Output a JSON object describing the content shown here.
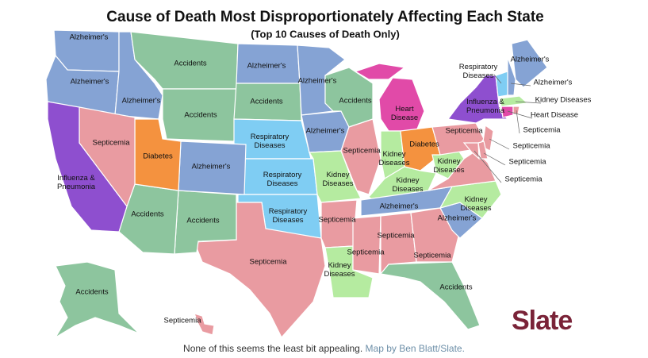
{
  "title": "Cause of Death Most Disproportionately Affecting Each State",
  "subtitle": "(Top 10 Causes of Death Only)",
  "regions": [
    {
      "label": [
        "Alzheimer's"
      ],
      "color": "#85a3d4"
    },
    {
      "label": [
        "Alzheimer's"
      ],
      "color": "#85a3d4"
    },
    {
      "label": [
        "Alzheimer's"
      ],
      "color": "#85a3d4"
    },
    {
      "label": [
        "Accidents"
      ],
      "color": "#8dc59e"
    },
    {
      "label": [
        "Accidents"
      ],
      "color": "#8dc59e"
    },
    {
      "label": [
        "Alzheimer's"
      ],
      "color": "#85a3d4"
    },
    {
      "label": [
        "Accidents"
      ],
      "color": "#8dc59e"
    },
    {
      "label": [
        "Respiratory",
        "Diseases"
      ],
      "color": "#7fcdf3"
    },
    {
      "label": [
        "Respiratory",
        "Diseases"
      ],
      "color": "#7fcdf3"
    },
    {
      "label": [
        "Respiratory",
        "Diseases"
      ],
      "color": "#7fcdf3"
    },
    {
      "label": [
        "Septicemia"
      ],
      "color": "#e99ba1"
    },
    {
      "label": [
        "Accidents"
      ],
      "color": "#8dc59e"
    },
    {
      "label": [
        "Accidents"
      ],
      "color": "#8dc59e"
    },
    {
      "label": [
        "Alzheimer's"
      ],
      "color": "#85a3d4"
    },
    {
      "label": [
        "Diabetes"
      ],
      "color": "#f4923f"
    },
    {
      "label": [
        "Septicemia"
      ],
      "color": "#e99ba1"
    },
    {
      "label": [
        "Influenza &",
        "Pneumonia"
      ],
      "color": "#8e4fcf"
    },
    {
      "label": [
        "Alzheimer's"
      ],
      "color": "#85a3d4"
    },
    {
      "label": [
        "Alzheimer's"
      ],
      "color": "#85a3d4"
    },
    {
      "label": [
        "Kidney",
        "Diseases"
      ],
      "color": "#b5eba0"
    },
    {
      "label": [
        "Septicemia"
      ],
      "color": "#e99ba1"
    },
    {
      "label": [
        "Kidney",
        "Diseases"
      ],
      "color": "#b5eba0"
    },
    {
      "label": [
        "Accidents"
      ],
      "color": "#8dc59e"
    },
    {
      "label": [
        "Septicemia"
      ],
      "color": "#e99ba1"
    },
    {
      "label": [
        "Heart",
        "Disease"
      ],
      "color": "#e14aa8"
    },
    {
      "color": "#e14aa8"
    },
    {
      "label": [
        "Kidney",
        "Diseases"
      ],
      "color": "#b5eba0"
    },
    {
      "label": [
        "Diabetes"
      ],
      "color": "#f4923f"
    },
    {
      "label": [
        "Kidney",
        "Diseases"
      ],
      "color": "#b5eba0"
    },
    {
      "label": [
        "Alzheimer's"
      ],
      "color": "#85a3d4"
    },
    {
      "label": [
        "Septicemia"
      ],
      "color": "#e99ba1"
    },
    {
      "label": [
        "Septicemia"
      ],
      "color": "#e99ba1"
    },
    {
      "label": [
        "Septicemia"
      ],
      "color": "#e99ba1"
    },
    {
      "label": [
        "Accidents"
      ],
      "color": "#8dc59e"
    },
    {
      "label": [
        "Alzheimer's"
      ],
      "color": "#85a3d4"
    },
    {
      "label": [
        "Kidney",
        "Diseases"
      ],
      "color": "#b5eba0"
    },
    {
      "color": "#e99ba1"
    },
    {
      "label": [
        "Kidney",
        "Diseases"
      ],
      "color": "#b5eba0"
    },
    {
      "label": [
        "Septicemia"
      ],
      "color": "#e99ba1"
    },
    {
      "label": [
        "Influenza &",
        "Pneumonia"
      ],
      "color": "#8e4fcf"
    },
    {
      "label": [
        "Alzheimer's"
      ],
      "color": "#85a3d4"
    },
    {
      "label": [
        "Alzheimer's"
      ],
      "color": "#85a3d4"
    },
    {
      "label": [
        "Respiratory",
        "Diseases"
      ],
      "color": "#7fcdf3"
    },
    {
      "label": [
        "Kidney Diseases"
      ],
      "color": "#b5eba0"
    },
    {
      "label": [
        "Heart Disease"
      ],
      "color": "#e14aa8"
    },
    {
      "label": [
        "Septicemia"
      ],
      "color": "#e99ba1"
    },
    {
      "label": [
        "Septicemia"
      ],
      "color": "#e99ba1"
    },
    {
      "label": [
        "Septicemia"
      ],
      "color": "#e99ba1"
    },
    {
      "label": [
        "Septicemia"
      ],
      "color": "#e99ba1"
    },
    {
      "label": [
        "Accidents"
      ],
      "color": "#8dc59e"
    },
    {
      "label": [
        "Septicemia"
      ],
      "color": "#e99ba1"
    }
  ],
  "caption": {
    "text": "None of this seems the least bit appealing.",
    "credit": "Map by Ben Blatt/Slate."
  },
  "logo": "Slate"
}
